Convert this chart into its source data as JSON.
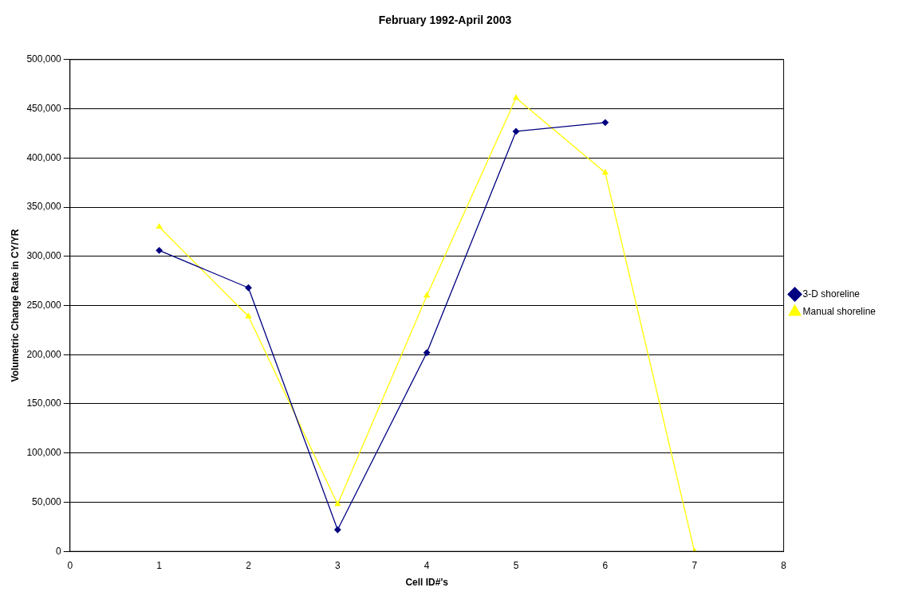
{
  "chart_data": {
    "type": "line",
    "title": "February 1992-April 2003",
    "xlabel": "Cell ID#'s",
    "ylabel": "Volumetric Change Rate in CY/YR",
    "xlim": [
      0,
      8
    ],
    "xticks": [
      0,
      1,
      2,
      3,
      4,
      5,
      6,
      7,
      8
    ],
    "ylim": [
      0,
      500000
    ],
    "yticks": [
      0,
      {
        "value": 50000,
        "label": "50,000"
      },
      {
        "value": 100000,
        "label": "100,000"
      },
      {
        "value": 150000,
        "label": "150,000"
      },
      {
        "value": 200000,
        "label": "200,000"
      },
      {
        "value": 250000,
        "label": "250,000"
      },
      {
        "value": 300000,
        "label": "300,000"
      },
      {
        "value": 350000,
        "label": "350,000"
      },
      {
        "value": 400000,
        "label": "400,000"
      },
      {
        "value": 450000,
        "label": "450,000"
      },
      {
        "value": 500000,
        "label": "500,000"
      }
    ],
    "grid": "y",
    "legend": "right",
    "series": [
      {
        "name": "3-D shoreline",
        "color": "#000080",
        "marker": "diamond",
        "x": [
          1,
          2,
          3,
          4,
          5,
          6
        ],
        "values": [
          306000,
          268000,
          22000,
          202000,
          427000,
          436000
        ]
      },
      {
        "name": "Manual shoreline",
        "color": "#ffff00",
        "marker": "triangle",
        "x": [
          1,
          2,
          3,
          4,
          5,
          6,
          7
        ],
        "values": [
          330000,
          239000,
          48000,
          260000,
          461000,
          385000,
          0
        ]
      }
    ]
  }
}
